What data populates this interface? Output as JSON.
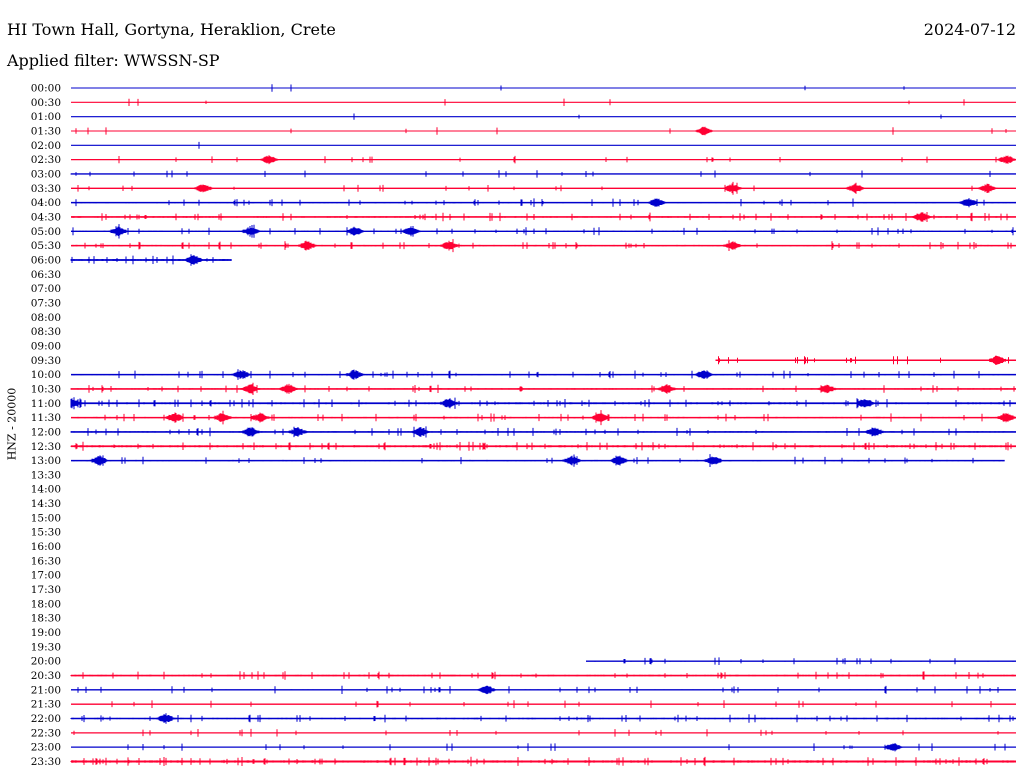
{
  "header": {
    "station": "HI Town Hall, Gortyna, Heraklion, Crete",
    "date": "2024-07-12",
    "filter": "Applied filter: WWSSN-SP"
  },
  "chart_data": {
    "type": "line",
    "title": "HI Town Hall, Gortyna, Heraklion, Crete",
    "subtitle": "Applied filter: WWSSN-SP",
    "date": "2024-07-12",
    "ylabel": "HNZ - 20000",
    "colors": [
      "#0000cc",
      "#ff0033"
    ],
    "rows": [
      {
        "time": "00:00",
        "start": 0.0,
        "end": 1.0,
        "activity": 0.05,
        "events": []
      },
      {
        "time": "00:30",
        "start": 0.0,
        "end": 1.0,
        "activity": 0.05,
        "events": []
      },
      {
        "time": "01:00",
        "start": 0.0,
        "end": 1.0,
        "activity": 0.05,
        "events": []
      },
      {
        "time": "01:30",
        "start": 0.0,
        "end": 1.0,
        "activity": 0.08,
        "events": [
          0.67
        ]
      },
      {
        "time": "02:00",
        "start": 0.0,
        "end": 1.0,
        "activity": 0.05,
        "events": []
      },
      {
        "time": "02:30",
        "start": 0.0,
        "end": 1.0,
        "activity": 0.15,
        "events": [
          0.21,
          0.99
        ]
      },
      {
        "time": "03:00",
        "start": 0.0,
        "end": 1.0,
        "activity": 0.3,
        "events": []
      },
      {
        "time": "03:30",
        "start": 0.0,
        "end": 1.0,
        "activity": 0.25,
        "events": [
          0.14,
          0.7,
          0.83,
          0.97
        ]
      },
      {
        "time": "04:00",
        "start": 0.0,
        "end": 1.0,
        "activity": 0.35,
        "events": [
          0.62,
          0.95
        ]
      },
      {
        "time": "04:30",
        "start": 0.0,
        "end": 1.0,
        "activity": 0.5,
        "events": [
          0.9
        ]
      },
      {
        "time": "05:00",
        "start": 0.0,
        "end": 1.0,
        "activity": 0.35,
        "events": [
          0.05,
          0.19,
          0.3,
          0.36
        ]
      },
      {
        "time": "05:30",
        "start": 0.0,
        "end": 1.0,
        "activity": 0.45,
        "events": [
          0.25,
          0.4,
          0.7
        ]
      },
      {
        "time": "06:00",
        "start": 0.0,
        "end": 0.17,
        "activity": 0.6,
        "events": [
          0.13
        ]
      },
      {
        "time": "06:30",
        "start": null,
        "end": null,
        "activity": 0,
        "events": []
      },
      {
        "time": "07:00",
        "start": null,
        "end": null,
        "activity": 0,
        "events": []
      },
      {
        "time": "07:30",
        "start": null,
        "end": null,
        "activity": 0,
        "events": []
      },
      {
        "time": "08:00",
        "start": null,
        "end": null,
        "activity": 0,
        "events": []
      },
      {
        "time": "08:30",
        "start": null,
        "end": null,
        "activity": 0,
        "events": []
      },
      {
        "time": "09:00",
        "start": null,
        "end": null,
        "activity": 0,
        "events": []
      },
      {
        "time": "09:30",
        "start": 0.682,
        "end": 1.0,
        "activity": 0.45,
        "events": [
          0.98
        ]
      },
      {
        "time": "10:00",
        "start": 0.0,
        "end": 1.0,
        "activity": 0.4,
        "events": [
          0.18,
          0.3,
          0.67
        ]
      },
      {
        "time": "10:30",
        "start": 0.0,
        "end": 1.0,
        "activity": 0.45,
        "events": [
          0.19,
          0.23,
          0.63,
          0.8
        ]
      },
      {
        "time": "11:00",
        "start": 0.0,
        "end": 1.0,
        "activity": 0.6,
        "events": [
          0.0,
          0.4,
          0.84
        ]
      },
      {
        "time": "11:30",
        "start": 0.0,
        "end": 1.0,
        "activity": 0.45,
        "events": [
          0.11,
          0.16,
          0.2,
          0.56,
          0.99
        ]
      },
      {
        "time": "12:00",
        "start": 0.0,
        "end": 1.0,
        "activity": 0.45,
        "events": [
          0.19,
          0.24,
          0.37,
          0.85
        ]
      },
      {
        "time": "12:30",
        "start": 0.0,
        "end": 1.0,
        "activity": 0.7,
        "events": []
      },
      {
        "time": "13:00",
        "start": 0.0,
        "end": 0.988,
        "activity": 0.4,
        "events": [
          0.03,
          0.53,
          0.58,
          0.68
        ]
      },
      {
        "time": "13:30",
        "start": null,
        "end": null,
        "activity": 0,
        "events": []
      },
      {
        "time": "14:00",
        "start": null,
        "end": null,
        "activity": 0,
        "events": []
      },
      {
        "time": "14:30",
        "start": null,
        "end": null,
        "activity": 0,
        "events": []
      },
      {
        "time": "15:00",
        "start": null,
        "end": null,
        "activity": 0,
        "events": []
      },
      {
        "time": "15:30",
        "start": null,
        "end": null,
        "activity": 0,
        "events": []
      },
      {
        "time": "16:00",
        "start": null,
        "end": null,
        "activity": 0,
        "events": []
      },
      {
        "time": "16:30",
        "start": null,
        "end": null,
        "activity": 0,
        "events": []
      },
      {
        "time": "17:00",
        "start": null,
        "end": null,
        "activity": 0,
        "events": []
      },
      {
        "time": "17:30",
        "start": null,
        "end": null,
        "activity": 0,
        "events": []
      },
      {
        "time": "18:00",
        "start": null,
        "end": null,
        "activity": 0,
        "events": []
      },
      {
        "time": "18:30",
        "start": null,
        "end": null,
        "activity": 0,
        "events": []
      },
      {
        "time": "19:00",
        "start": null,
        "end": null,
        "activity": 0,
        "events": []
      },
      {
        "time": "19:30",
        "start": null,
        "end": null,
        "activity": 0,
        "events": []
      },
      {
        "time": "20:00",
        "start": 0.545,
        "end": 1.0,
        "activity": 0.3,
        "events": []
      },
      {
        "time": "20:30",
        "start": 0.0,
        "end": 1.0,
        "activity": 0.5,
        "events": []
      },
      {
        "time": "21:00",
        "start": 0.0,
        "end": 1.0,
        "activity": 0.3,
        "events": [
          0.44
        ]
      },
      {
        "time": "21:30",
        "start": 0.0,
        "end": 1.0,
        "activity": 0.25,
        "events": []
      },
      {
        "time": "22:00",
        "start": 0.0,
        "end": 1.0,
        "activity": 0.45,
        "events": [
          0.1
        ]
      },
      {
        "time": "22:30",
        "start": 0.0,
        "end": 1.0,
        "activity": 0.2,
        "events": []
      },
      {
        "time": "23:00",
        "start": 0.0,
        "end": 1.0,
        "activity": 0.2,
        "events": [
          0.87
        ]
      },
      {
        "time": "23:30",
        "start": 0.0,
        "end": 1.0,
        "activity": 0.8,
        "events": []
      }
    ]
  }
}
